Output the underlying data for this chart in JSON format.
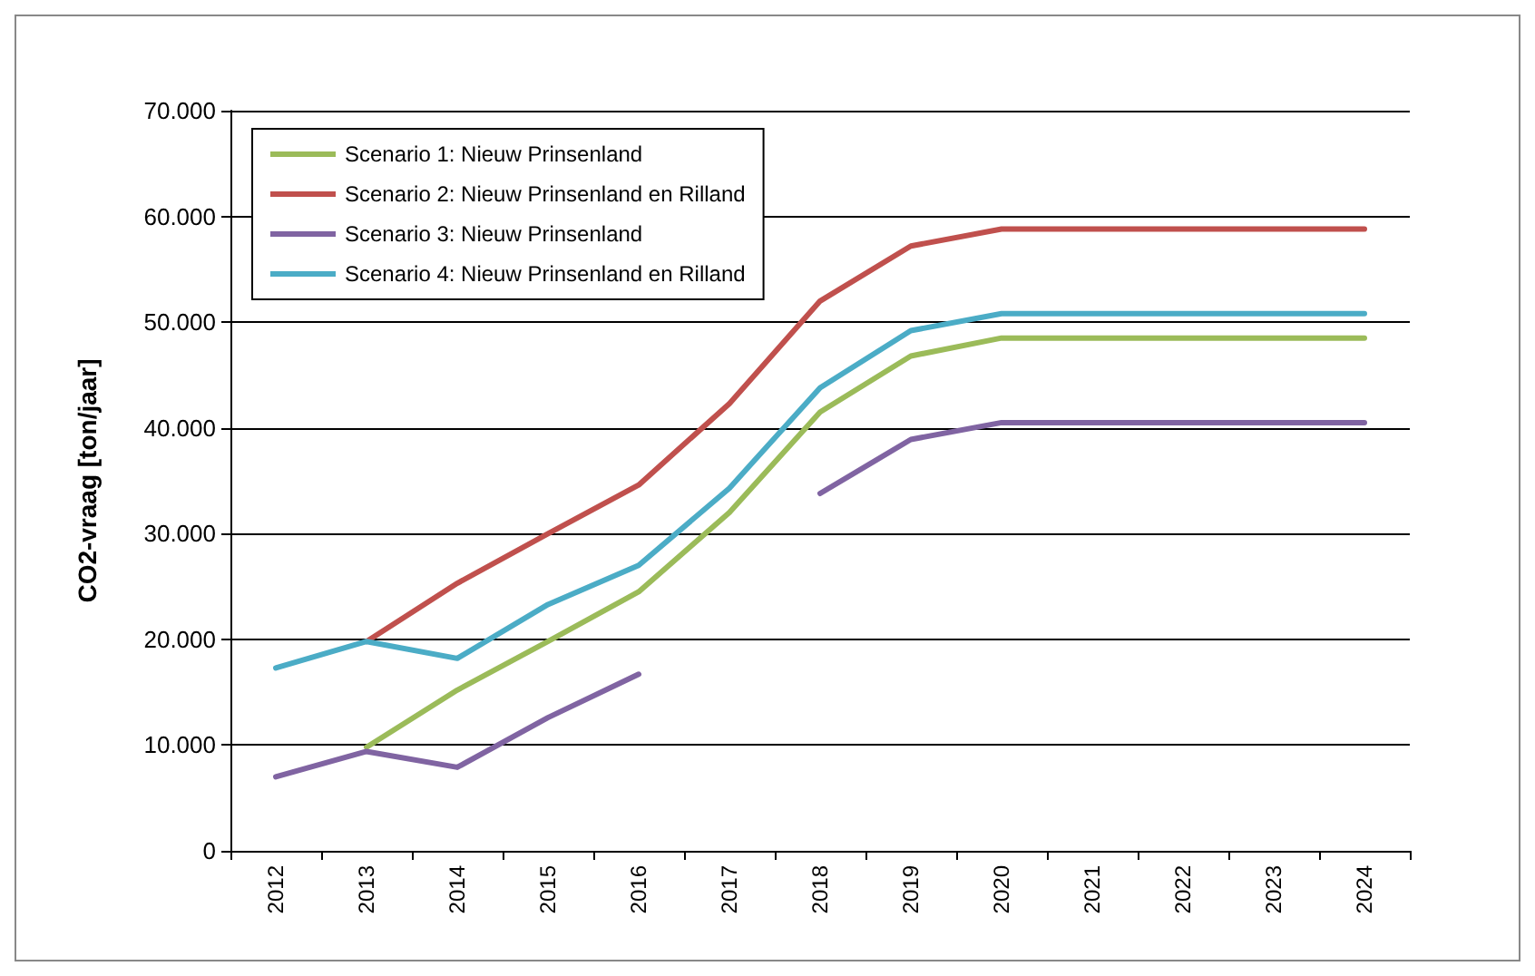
{
  "chart_data": {
    "type": "line",
    "ylabel": "CO2-vraag [ton/jaar]",
    "categories": [
      "2012",
      "2013",
      "2014",
      "2015",
      "2016",
      "2017",
      "2018",
      "2019",
      "2020",
      "2021",
      "2022",
      "2023",
      "2024"
    ],
    "series": [
      {
        "name": "Scenario 1: Nieuw Prinsenland",
        "color": "#9bbb59",
        "values": [
          null,
          9800,
          15200,
          19800,
          24500,
          32000,
          41500,
          46800,
          48500,
          48500,
          48500,
          48500,
          48500
        ]
      },
      {
        "name": "Scenario 2: Nieuw Prinsenland en Rilland",
        "color": "#c0504d",
        "values": [
          null,
          19800,
          25300,
          30000,
          34600,
          42300,
          52000,
          57200,
          58800,
          58800,
          58800,
          58800,
          58800
        ]
      },
      {
        "name": "Scenario 3: Nieuw Prinsenland",
        "color": "#8064a2",
        "values": [
          7000,
          9400,
          7900,
          12600,
          16700,
          null,
          33800,
          38900,
          40500,
          40500,
          40500,
          40500,
          40500
        ]
      },
      {
        "name": "Scenario 4: Nieuw Prinsenland en Rilland",
        "color": "#4bacc6",
        "values": [
          17300,
          19800,
          18200,
          23300,
          27000,
          34300,
          43800,
          49200,
          50800,
          50800,
          50800,
          50800,
          50800
        ]
      }
    ],
    "ylim": [
      0,
      70000
    ],
    "yticks": [
      0,
      {
        "value": 10000,
        "label": "10.000"
      },
      {
        "value": 20000,
        "label": "20.000"
      },
      {
        "value": 30000,
        "label": "30.000"
      },
      {
        "value": 40000,
        "label": "40.000"
      },
      {
        "value": 50000,
        "label": "50.000"
      },
      {
        "value": 60000,
        "label": "60.000"
      },
      {
        "value": 70000,
        "label": "70.000"
      }
    ],
    "grid": "y",
    "legend": "top left",
    "marker": "none",
    "line_style": "solid"
  }
}
